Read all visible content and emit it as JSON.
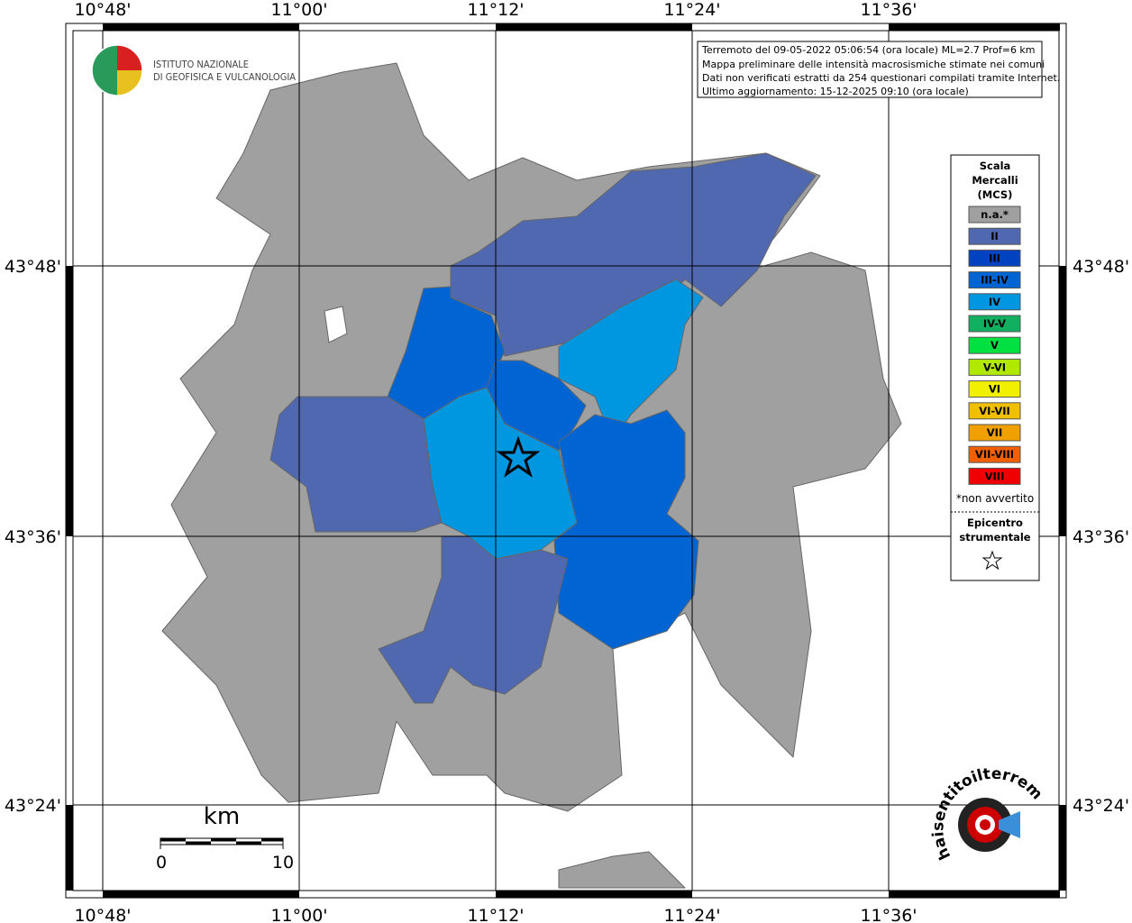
{
  "logo": {
    "line1": "ISTITUTO NAZIONALE",
    "line2": "DI GEOFISICA E VULCANOLOGIA"
  },
  "info": [
    "Terremoto del 09-05-2022 05:06:54 (ora locale) ML=2.7 Prof=6 km",
    "Mappa preliminare delle intensità macrosismiche stimate nei comuni",
    "Dati non verificati estratti da 254 questionari compilati tramite Internet.",
    "Ultimo aggiornamento: 15-12-2025 09:10 (ora locale)"
  ],
  "x_labels": [
    "10°48'",
    "11°00'",
    "11°12'",
    "11°24'",
    "11°36'"
  ],
  "y_labels": [
    "43°48'",
    "43°36'",
    "43°24'"
  ],
  "legend": {
    "title": [
      "Scala",
      "Mercalli",
      "(MCS)"
    ],
    "items": [
      {
        "label": "n.a.*",
        "color": "#a0a0a0",
        "text_color": "#ffffff"
      },
      {
        "label": "II",
        "color": "#4f68b0",
        "text_color": "#ffffff"
      },
      {
        "label": "III",
        "color": "#0042c0",
        "text_color": "#ffffff"
      },
      {
        "label": "III-IV",
        "color": "#0064d2",
        "text_color": "#ffffff"
      },
      {
        "label": "IV",
        "color": "#0096e0",
        "text_color": "#ffffff"
      },
      {
        "label": "IV-V",
        "color": "#10b060",
        "text_color": "#000000"
      },
      {
        "label": "V",
        "color": "#00e040",
        "text_color": "#000000"
      },
      {
        "label": "V-VI",
        "color": "#b0e800",
        "text_color": "#000000"
      },
      {
        "label": "VI",
        "color": "#f0f000",
        "text_color": "#000000"
      },
      {
        "label": "VI-VII",
        "color": "#f0c000",
        "text_color": "#000000"
      },
      {
        "label": "VII",
        "color": "#f0a000",
        "text_color": "#000000"
      },
      {
        "label": "VII-VIII",
        "color": "#f06000",
        "text_color": "#000000"
      },
      {
        "label": "VIII",
        "color": "#f00000",
        "text_color": "#000000"
      }
    ],
    "note": "*non avvertito",
    "epicenter": [
      "Epicentro",
      "strumentale"
    ]
  },
  "scale": {
    "unit": "km",
    "start": "0",
    "end": "10"
  },
  "hsit": "haisentitoilterremoto.it"
}
